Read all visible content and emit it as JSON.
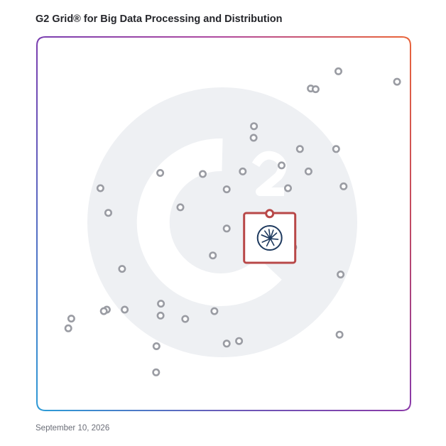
{
  "title": "G2 Grid® for Big Data Processing and Distribution",
  "date": "September 10, 2026",
  "watermark": "g2-logo-watermark",
  "colors": {
    "marker": "#9a9ca3",
    "highlight": "#b84848",
    "highlight_icon": "#1e3a5f",
    "watermark": "#eef0f3",
    "frame_top_left": "#7a3fb0",
    "frame_top_right": "#e8643c",
    "frame_bottom_left": "#2e9ad6",
    "frame_bottom_right": "#8a3aa8",
    "divider": "#9a6fb5"
  },
  "chart_data": {
    "type": "scatter",
    "title": "G2 Grid® for Big Data Processing and Distribution",
    "xlabel": "",
    "ylabel": "",
    "xlim": [
      0,
      100
    ],
    "ylim": [
      0,
      100
    ],
    "quadrant_dividers": {
      "x": 50,
      "y": 50
    },
    "grid": false,
    "legend": "none",
    "points": [
      {
        "x": 73.3,
        "y": 86.2
      },
      {
        "x": 74.6,
        "y": 86.0
      },
      {
        "x": 96.4,
        "y": 88.0
      },
      {
        "x": 80.7,
        "y": 90.8
      },
      {
        "x": 58.1,
        "y": 76.1
      },
      {
        "x": 58.0,
        "y": 73.0
      },
      {
        "x": 70.4,
        "y": 70.0
      },
      {
        "x": 80.1,
        "y": 70.0
      },
      {
        "x": 65.5,
        "y": 65.6
      },
      {
        "x": 72.7,
        "y": 64.0
      },
      {
        "x": 55.1,
        "y": 64.0
      },
      {
        "x": 44.4,
        "y": 63.3
      },
      {
        "x": 33.0,
        "y": 63.6
      },
      {
        "x": 82.1,
        "y": 60.0
      },
      {
        "x": 67.2,
        "y": 59.5
      },
      {
        "x": 50.8,
        "y": 59.2
      },
      {
        "x": 17.0,
        "y": 59.5
      },
      {
        "x": 38.4,
        "y": 54.4
      },
      {
        "x": 19.1,
        "y": 52.9
      },
      {
        "x": 50.8,
        "y": 48.7
      },
      {
        "x": 68.6,
        "y": 43.7
      },
      {
        "x": 47.1,
        "y": 41.5
      },
      {
        "x": 81.3,
        "y": 36.4
      },
      {
        "x": 22.8,
        "y": 37.9
      },
      {
        "x": 33.2,
        "y": 28.6
      },
      {
        "x": 18.7,
        "y": 27.0
      },
      {
        "x": 23.5,
        "y": 27.0
      },
      {
        "x": 9.2,
        "y": 24.6
      },
      {
        "x": 17.9,
        "y": 26.6
      },
      {
        "x": 33.1,
        "y": 25.4
      },
      {
        "x": 47.5,
        "y": 26.6
      },
      {
        "x": 39.7,
        "y": 24.5
      },
      {
        "x": 8.4,
        "y": 22.0
      },
      {
        "x": 81.0,
        "y": 20.3
      },
      {
        "x": 54.1,
        "y": 18.6
      },
      {
        "x": 50.8,
        "y": 17.9
      },
      {
        "x": 32.0,
        "y": 17.2
      },
      {
        "x": 31.9,
        "y": 10.2
      }
    ],
    "highlight": {
      "x": 62.3,
      "y": 46.2,
      "marker_y": 52.7,
      "icon": "vendor-logo-icon"
    }
  }
}
